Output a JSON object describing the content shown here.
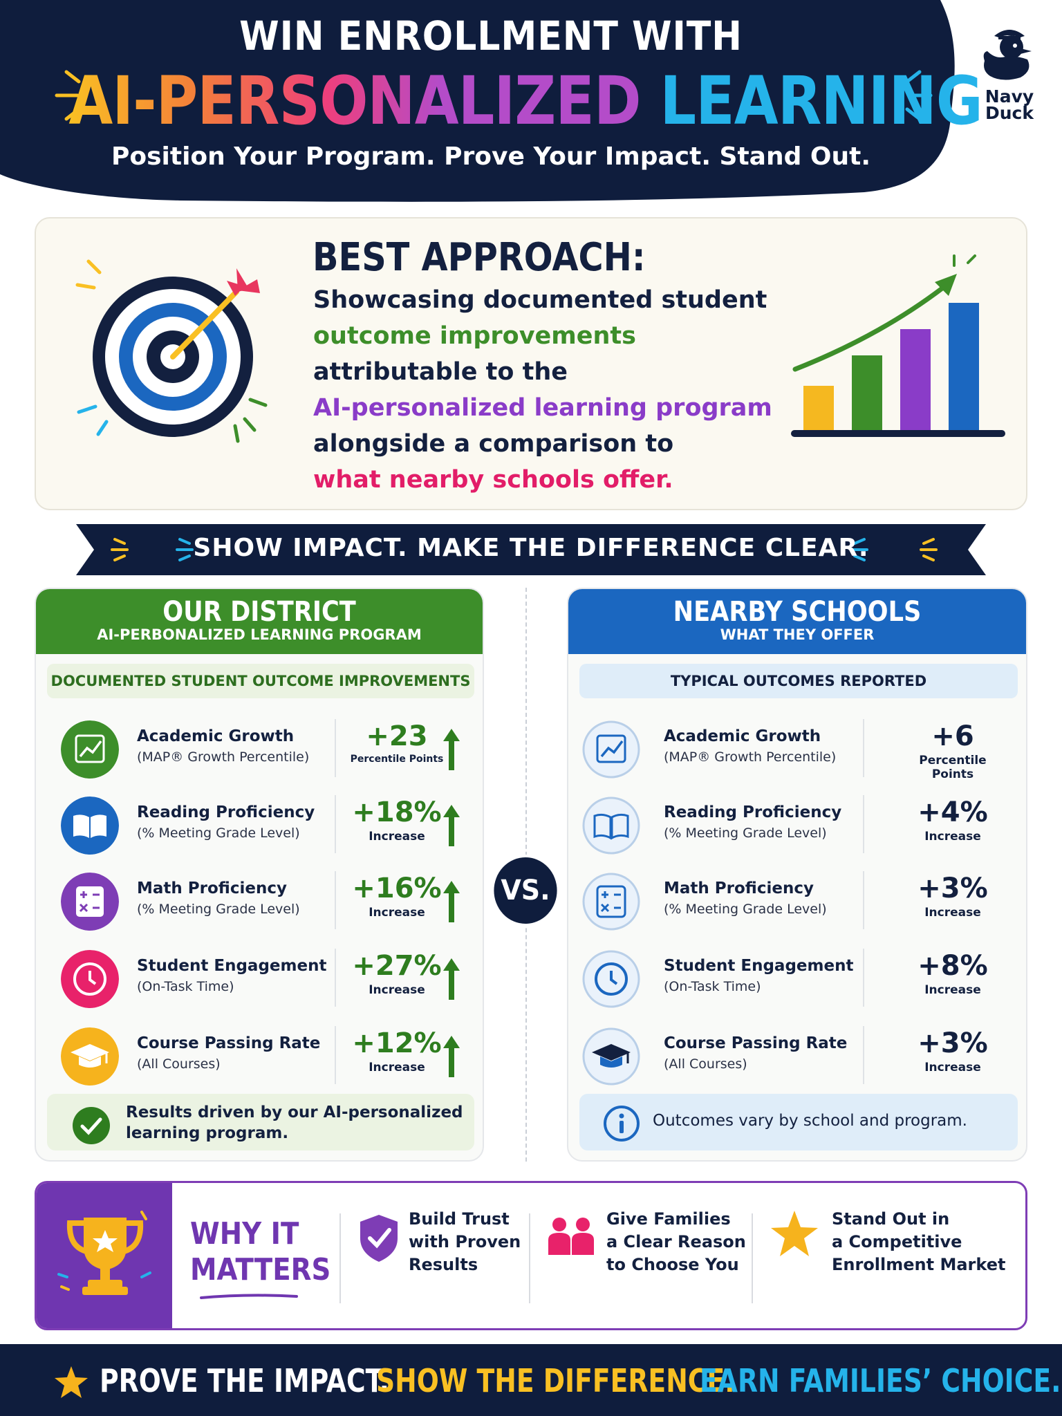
{
  "header": {
    "title_line1": "WIN ENROLLMENT WITH",
    "title_part1": "AI-PERSONALIZED",
    "title_part2": "LEARNING",
    "subtitle": "Position Your Program. Prove Your Impact. Stand Out.",
    "logo_line1": "Navy",
    "logo_line2": "Duck"
  },
  "best_approach": {
    "title": "BEST APPROACH:",
    "line1": "Showcasing documented student",
    "line2": "outcome improvements",
    "line3": "attributable to the",
    "line4": "AI-personalized learning program",
    "line5": "alongside a comparison to",
    "line6": "what nearby schools offer."
  },
  "banner": "SHOW IMPACT. MAKE THE DIFFERENCE CLEAR.",
  "vs": "VS.",
  "district": {
    "title": "OUR DISTRICT",
    "subtitle": "AI-PERBONALIZED LEARNING PROGRAM",
    "section": "DOCUMENTED STUDENT OUTCOME IMPROVEMENTS",
    "rows": [
      {
        "label": "Academic Growth",
        "sub": "(MAP® Growth Percentile)",
        "value": "+23",
        "unit": "Percentile Points"
      },
      {
        "label": "Reading Proficiency",
        "sub": "(% Meeting Grade Level)",
        "value": "+18%",
        "unit": "Increase"
      },
      {
        "label": "Math Proficiency",
        "sub": "(% Meeting Grade Level)",
        "value": "+16%",
        "unit": "Increase"
      },
      {
        "label": "Student Engagement",
        "sub": "(On-Task Time)",
        "value": "+27%",
        "unit": "Increase"
      },
      {
        "label": "Course Passing Rate",
        "sub": "(All Courses)",
        "value": "+12%",
        "unit": "Increase"
      }
    ],
    "footer_line1": "Results driven by our AI-personalized",
    "footer_line2": "learning program."
  },
  "nearby": {
    "title": "NEARBY SCHOOLS",
    "subtitle": "WHAT THEY OFFER",
    "section": "TYPICAL OUTCOMES REPORTED",
    "rows": [
      {
        "label": "Academic Growth",
        "sub": "(MAP® Growth Percentile)",
        "value": "+6",
        "unit": "Percentile Points"
      },
      {
        "label": "Reading Proficiency",
        "sub": "(% Meeting Grade Level)",
        "value": "+4%",
        "unit": "Increase"
      },
      {
        "label": "Math Proficiency",
        "sub": "(% Meeting Grade Level)",
        "value": "+3%",
        "unit": "Increase"
      },
      {
        "label": "Student Engagement",
        "sub": "(On-Task Time)",
        "value": "+8%",
        "unit": "Increase"
      },
      {
        "label": "Course Passing Rate",
        "sub": "(All Courses)",
        "value": "+3%",
        "unit": "Increase"
      }
    ],
    "footer": "Outcomes vary by school and program."
  },
  "why": {
    "title_line1": "WHY IT",
    "title_line2": "MATTERS",
    "items": [
      {
        "l1": "Build Trust",
        "l2": "with Proven",
        "l3": "Results"
      },
      {
        "l1": "Give Families",
        "l2": "a Clear Reason",
        "l3": "to Choose You"
      },
      {
        "l1": "Stand Out in",
        "l2": "a Competitive",
        "l3": "Enrollment Market"
      }
    ]
  },
  "bottom": {
    "part1": "PROVE THE IMPACT.",
    "part2": "SHOW THE DIFFERENCE.",
    "part3": "EARN FAMILIES’ CHOICE."
  },
  "colors": {
    "navy": "#0f1d3d",
    "green": "#3d8e2a",
    "blue": "#1b67c0",
    "purple": "#6f36b0",
    "pink": "#e21d68",
    "yellow": "#f9c023"
  }
}
